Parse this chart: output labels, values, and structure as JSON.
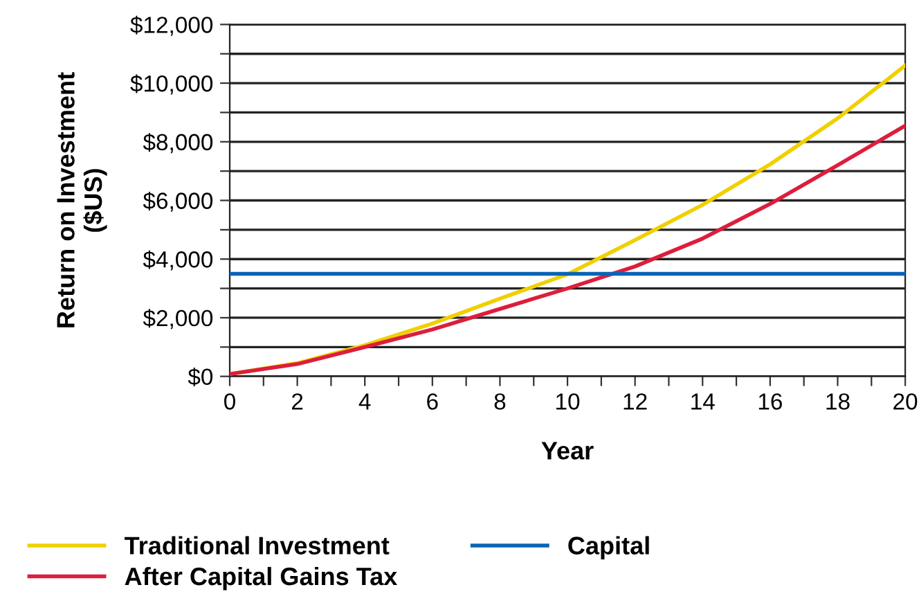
{
  "chart_data": {
    "type": "line",
    "xlabel": "Year",
    "ylabel": "Return on Investment\n($US)",
    "x": [
      0,
      2,
      4,
      6,
      8,
      10,
      12,
      14,
      16,
      18,
      20
    ],
    "series": [
      {
        "name": "Traditional Investment",
        "color": "#f0d000",
        "values": [
          80,
          450,
          1060,
          1800,
          2650,
          3480,
          4650,
          5850,
          7230,
          8800,
          10600
        ]
      },
      {
        "name": "After Capital Gains Tax",
        "color": "#dc1e3c",
        "values": [
          80,
          420,
          1000,
          1600,
          2300,
          3000,
          3750,
          4700,
          5880,
          7200,
          8550
        ]
      },
      {
        "name": "Capital",
        "color": "#0a64b4",
        "values": [
          3500,
          3500,
          3500,
          3500,
          3500,
          3500,
          3500,
          3500,
          3500,
          3500,
          3500
        ]
      }
    ],
    "xlim": [
      0,
      20
    ],
    "ylim": [
      0,
      12000
    ],
    "xticks": [
      0,
      {
        "value": 1,
        "label": null
      },
      2,
      {
        "value": 3,
        "label": null
      },
      4,
      {
        "value": 5,
        "label": null
      },
      6,
      {
        "value": 7,
        "label": null
      },
      8,
      {
        "value": 9,
        "label": null
      },
      10,
      {
        "value": 11,
        "label": null
      },
      12,
      {
        "value": 13,
        "label": null
      },
      14,
      {
        "value": 15,
        "label": null
      },
      16,
      {
        "value": 17,
        "label": null
      },
      18,
      {
        "value": 19,
        "label": null
      },
      20
    ],
    "yticks": [
      {
        "value": 0,
        "label": "$0"
      },
      {
        "value": 1000,
        "label": null
      },
      {
        "value": 2000,
        "label": "$2,000"
      },
      {
        "value": 3000,
        "label": null
      },
      {
        "value": 4000,
        "label": "$4,000"
      },
      {
        "value": 5000,
        "label": null
      },
      {
        "value": 6000,
        "label": "$6,000"
      },
      {
        "value": 7000,
        "label": null
      },
      {
        "value": 8000,
        "label": "$8,000"
      },
      {
        "value": 9000,
        "label": null
      },
      {
        "value": 10000,
        "label": "$10,000"
      },
      {
        "value": 11000,
        "label": null
      },
      {
        "value": 12000,
        "label": "$12,000"
      }
    ],
    "grid": "y",
    "legend": "bottom",
    "marker": "none",
    "line_style": "solid"
  }
}
